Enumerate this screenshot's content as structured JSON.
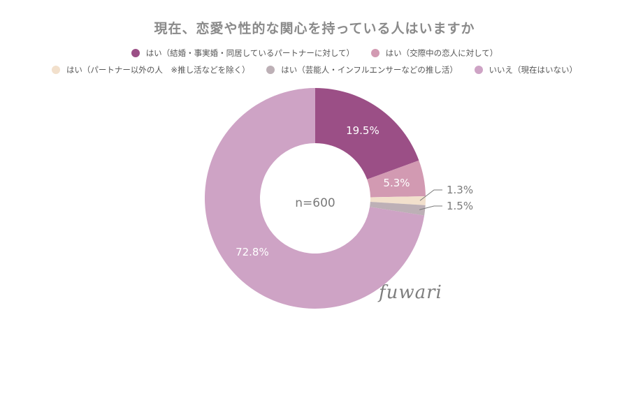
{
  "chart_data": {
    "type": "pie",
    "title": "現在、恋愛や性的な関心を持っている人はいますか",
    "center_text": "n=600",
    "slices": [
      {
        "name": "はい（結婚・事実婚・同居しているパートナーに対して）",
        "value": 19.5,
        "label": "19.5%",
        "color": "#9b4f86"
      },
      {
        "name": "はい（交際中の恋人に対して）",
        "value": 5.3,
        "label": "5.3%",
        "color": "#d29ab2"
      },
      {
        "name": "はい（パートナー以外の人　※推し活などを除く）",
        "value": 1.3,
        "label": "1.3%",
        "color": "#f2e0cc"
      },
      {
        "name": "はい（芸能人・インフルエンサーなどの推し活）",
        "value": 1.5,
        "label": "1.5%",
        "color": "#bdb0b6"
      },
      {
        "name": "いいえ（現在はいない）",
        "value": 72.8,
        "label": "72.8%",
        "color": "#cea3c5"
      }
    ],
    "legend_placement": "top"
  },
  "logo_text": "fuwari"
}
